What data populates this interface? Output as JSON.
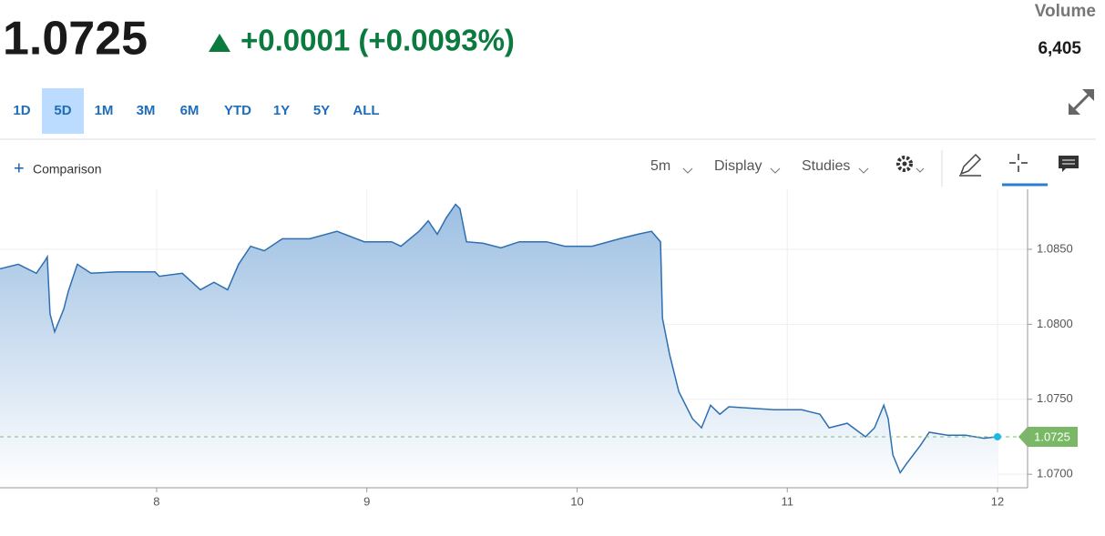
{
  "header": {
    "price": "1.0725",
    "change": "+0.0001 (+0.0093%)",
    "volume_label": "Volume",
    "volume": "6,405"
  },
  "ranges": [
    "1D",
    "5D",
    "1M",
    "3M",
    "6M",
    "YTD",
    "1Y",
    "5Y",
    "ALL"
  ],
  "selected_range": "5D",
  "toolbar": {
    "comparison": "Comparison",
    "interval": "5m",
    "display": "Display",
    "studies": "Studies"
  },
  "chart_data": {
    "type": "area",
    "x": [
      7.255,
      7.342,
      7.428,
      7.472,
      7.48,
      7.493,
      7.515,
      7.558,
      7.58,
      7.623,
      7.688,
      7.818,
      7.992,
      8.013,
      8.122,
      8.208,
      8.273,
      8.338,
      8.39,
      8.447,
      8.512,
      8.598,
      8.728,
      8.858,
      8.988,
      9.118,
      9.162,
      9.248,
      9.292,
      9.335,
      9.378,
      9.422,
      9.443,
      9.474,
      9.552,
      9.638,
      9.725,
      9.855,
      9.942,
      10.072,
      10.202,
      10.289,
      10.354,
      10.397,
      10.406,
      10.44,
      10.484,
      10.549,
      10.592,
      10.635,
      10.679,
      10.722,
      10.939,
      11.069,
      11.155,
      11.199,
      11.285,
      11.372,
      11.415,
      11.459,
      11.48,
      11.502,
      11.537,
      11.567,
      11.632,
      11.675,
      11.762,
      11.849,
      11.935,
      12.0
    ],
    "values": [
      1.0837,
      1.084,
      1.0834,
      1.0843,
      1.0845,
      1.0807,
      1.0795,
      1.081,
      1.0822,
      1.084,
      1.0834,
      1.0835,
      1.0835,
      1.0832,
      1.0834,
      1.0823,
      1.0828,
      1.0823,
      1.084,
      1.0852,
      1.0849,
      1.0857,
      1.0857,
      1.0862,
      1.0855,
      1.0855,
      1.0852,
      1.0862,
      1.0869,
      1.086,
      1.0871,
      1.088,
      1.0877,
      1.0855,
      1.0854,
      1.0851,
      1.0855,
      1.0855,
      1.0852,
      1.0852,
      1.0857,
      1.086,
      1.0862,
      1.0855,
      1.0804,
      1.078,
      1.0755,
      1.0737,
      1.0731,
      1.0746,
      1.074,
      1.0745,
      1.0743,
      1.0743,
      1.074,
      1.0731,
      1.0734,
      1.0725,
      1.0731,
      1.0746,
      1.0737,
      1.0713,
      1.0701,
      1.0707,
      1.0719,
      1.0728,
      1.0726,
      1.0726,
      1.0724,
      1.0725
    ],
    "color": "#2d6fb0",
    "xlim": [
      7.255,
      12.143
    ],
    "xticks": [
      8,
      9,
      10,
      11,
      12
    ],
    "ylim": [
      1.0691,
      1.089
    ],
    "yticks": [
      {
        "value": 1.07,
        "label": "1.0700"
      },
      {
        "value": 1.075,
        "label": "1.0750"
      },
      {
        "value": 1.08,
        "label": "1.0800"
      },
      {
        "value": 1.085,
        "label": "1.0850"
      }
    ],
    "grid": true,
    "current": {
      "value": 1.0725,
      "label": "1.0725"
    }
  }
}
